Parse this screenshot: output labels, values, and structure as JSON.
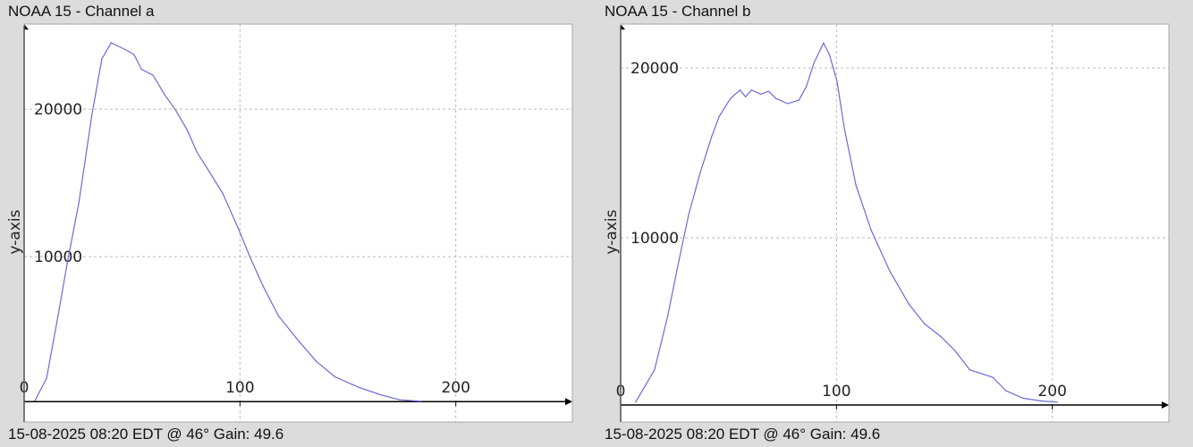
{
  "chart_data": [
    {
      "type": "line",
      "title": "NOAA 15 - Channel a",
      "ylabel": "y-axis",
      "xlabel": "",
      "footer": "15-08-2025 08:20 EDT @ 46° Gain: 49.6",
      "xlim": [
        0,
        254
      ],
      "ylim": [
        -1200,
        25760
      ],
      "x_ticks": [
        "0",
        "100",
        "200"
      ],
      "y_ticks": [
        "10000",
        "20000"
      ],
      "grid": true,
      "line_color": "#6b6bd6",
      "x": [
        5,
        10.4,
        15.7,
        20,
        25.4,
        31.5,
        36,
        40.3,
        47.4,
        50.9,
        54.4,
        59.7,
        65,
        70.3,
        75.5,
        80,
        86,
        92,
        99.3,
        104.6,
        110.7,
        117.8,
        126.6,
        135.4,
        144,
        155,
        165,
        174,
        183.8
      ],
      "y": [
        240,
        1760,
        6000,
        9600,
        13700,
        19700,
        23400,
        24500,
        24000,
        23700,
        22700,
        22300,
        21000,
        19900,
        18600,
        17100,
        15700,
        14300,
        11900,
        10000,
        8000,
        6000,
        4400,
        2900,
        1860,
        1150,
        650,
        300,
        200
      ]
    },
    {
      "type": "line",
      "title": "NOAA 15 - Channel b",
      "ylabel": "y-axis",
      "xlabel": "",
      "footer": "15-08-2025 08:20 EDT @ 46° Gain: 49.6",
      "xlim": [
        0,
        254
      ],
      "ylim": [
        -840,
        22580
      ],
      "x_ticks": [
        "0",
        "100",
        "200"
      ],
      "y_ticks": [
        "10000",
        "20000"
      ],
      "grid": true,
      "line_color": "#6b6bd6",
      "x": [
        6.9,
        15.7,
        21.8,
        27.1,
        31.5,
        36.8,
        42,
        45.6,
        50.9,
        55.3,
        57.9,
        60.6,
        65,
        68.5,
        72,
        77.3,
        82.6,
        86,
        89.6,
        94,
        96.7,
        100.2,
        103.7,
        109,
        116,
        124.8,
        133.6,
        140.7,
        148.6,
        154.8,
        161.8,
        172.4,
        178.5,
        186.4,
        195.2,
        202.3
      ],
      "y": [
        330,
        2230,
        5390,
        8720,
        11350,
        13800,
        15900,
        17140,
        18200,
        18700,
        18300,
        18700,
        18460,
        18630,
        18200,
        17900,
        18100,
        18900,
        20300,
        21470,
        20800,
        19250,
        16400,
        13100,
        10470,
        8020,
        6090,
        4950,
        4160,
        3370,
        2230,
        1790,
        1000,
        560,
        390,
        330
      ]
    }
  ]
}
